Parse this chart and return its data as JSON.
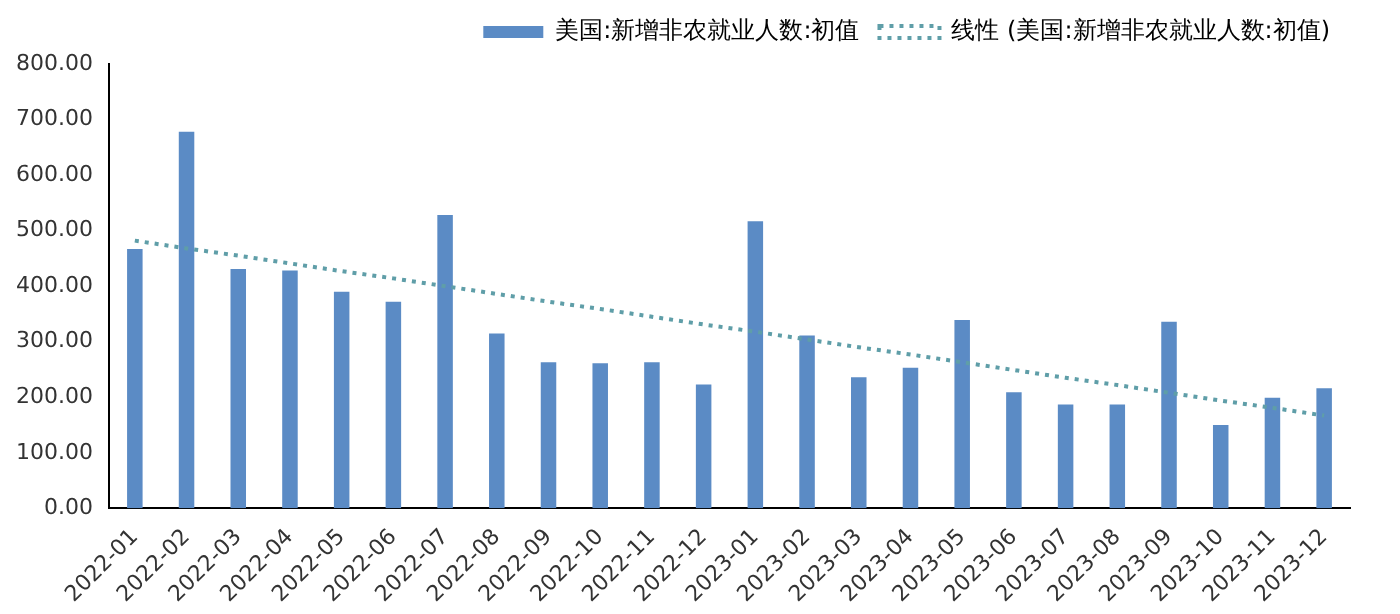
{
  "chart_data": {
    "type": "bar",
    "categories": [
      "2022-01",
      "2022-02",
      "2022-03",
      "2022-04",
      "2022-05",
      "2022-06",
      "2022-07",
      "2022-08",
      "2022-09",
      "2022-10",
      "2022-11",
      "2022-12",
      "2023-01",
      "2023-02",
      "2023-03",
      "2023-04",
      "2023-05",
      "2023-06",
      "2023-07",
      "2023-08",
      "2023-09",
      "2023-10",
      "2023-11",
      "2023-12"
    ],
    "series": [
      {
        "name": "美国:新增非农就业人数:初值",
        "color": "#5b8bc5",
        "values": [
          467,
          678,
          431,
          428,
          390,
          372,
          528,
          315,
          263,
          261,
          263,
          223,
          517,
          311,
          236,
          253,
          339,
          209,
          187,
          187,
          336,
          150,
          199,
          216
        ]
      },
      {
        "name": "线性 (美国:新增非农就业人数:初值)",
        "type": "line",
        "color": "#5f9ea8",
        "line_style": "dotted",
        "marker": "none",
        "values": [
          482,
          468,
          455,
          441,
          427,
          414,
          400,
          386,
          372,
          359,
          345,
          331,
          318,
          304,
          290,
          277,
          263,
          249,
          235,
          222,
          208,
          194,
          181,
          167
        ]
      }
    ],
    "ylim": [
      0,
      800
    ],
    "yticks": [
      {
        "value": 0,
        "label": "0.00"
      },
      {
        "value": 100,
        "label": "100.00"
      },
      {
        "value": 200,
        "label": "200.00"
      },
      {
        "value": 300,
        "label": "300.00"
      },
      {
        "value": 400,
        "label": "400.00"
      },
      {
        "value": 500,
        "label": "500.00"
      },
      {
        "value": 600,
        "label": "600.00"
      },
      {
        "value": 700,
        "label": "700.00"
      },
      {
        "value": 800,
        "label": "800.00"
      }
    ],
    "grid": false,
    "legend": "top right"
  }
}
